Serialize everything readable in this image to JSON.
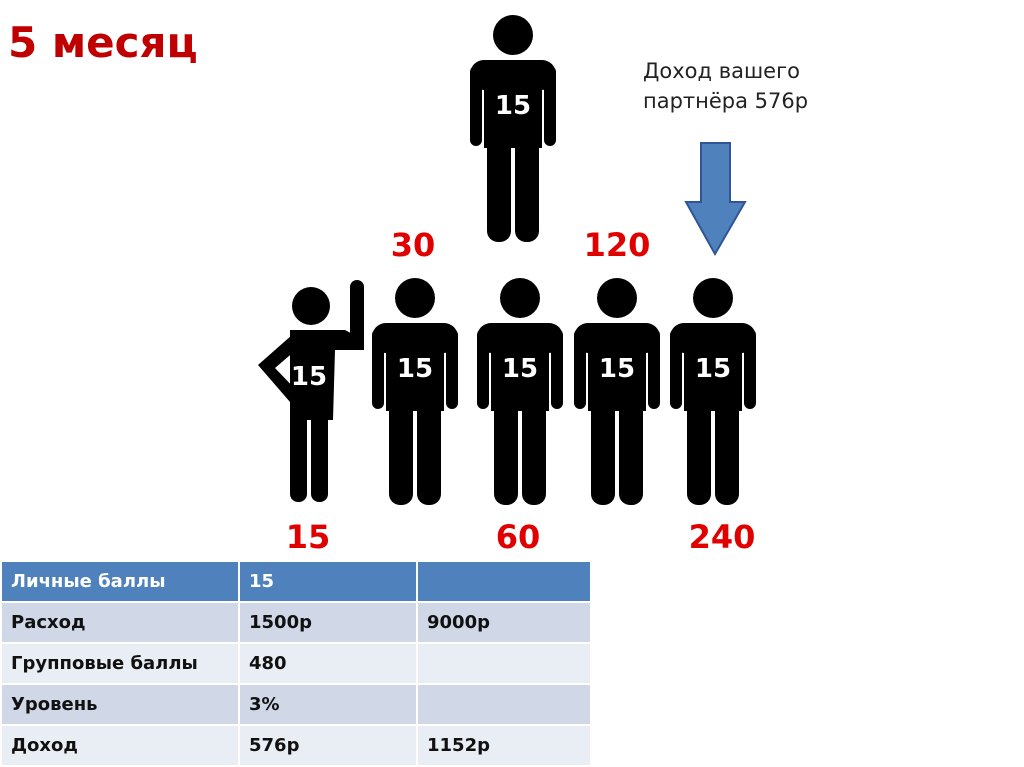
{
  "title": "5 месяц",
  "note": {
    "line1": "Доход вашего",
    "line2": "партнёра 576р"
  },
  "arrow": {
    "icon": "down-arrow-icon",
    "color": "#4f81bd"
  },
  "figures": {
    "top": "15",
    "waving": "15",
    "f1": "15",
    "f2": "15",
    "f3": "15",
    "f4": "15"
  },
  "labels": {
    "l30": "30",
    "l120": "120",
    "l15": "15",
    "l60": "60",
    "l240": "240"
  },
  "table": {
    "rows": [
      [
        "Личные баллы",
        "15",
        ""
      ],
      [
        "Расход",
        "1500р",
        "9000р"
      ],
      [
        "Групповые баллы",
        "480",
        ""
      ],
      [
        "Уровень",
        "3%",
        ""
      ],
      [
        "Доход",
        "576р",
        "1152р"
      ]
    ]
  }
}
